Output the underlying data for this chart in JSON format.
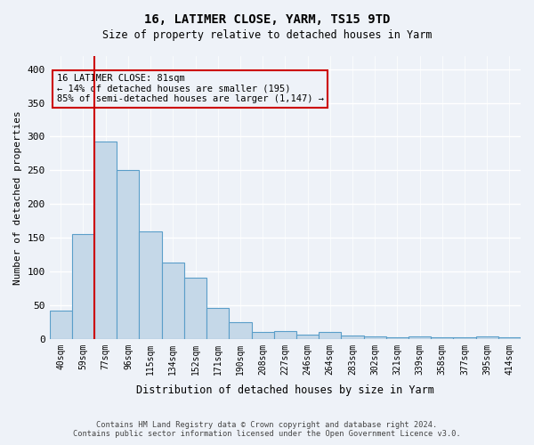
{
  "title1": "16, LATIMER CLOSE, YARM, TS15 9TD",
  "title2": "Size of property relative to detached houses in Yarm",
  "xlabel": "Distribution of detached houses by size in Yarm",
  "ylabel": "Number of detached properties",
  "categories": [
    "40sqm",
    "59sqm",
    "77sqm",
    "96sqm",
    "115sqm",
    "134sqm",
    "152sqm",
    "171sqm",
    "190sqm",
    "208sqm",
    "227sqm",
    "246sqm",
    "264sqm",
    "283sqm",
    "302sqm",
    "321sqm",
    "339sqm",
    "358sqm",
    "377sqm",
    "395sqm",
    "414sqm"
  ],
  "values": [
    42,
    155,
    293,
    251,
    160,
    113,
    91,
    46,
    25,
    10,
    11,
    6,
    10,
    5,
    4,
    2,
    4,
    3,
    2,
    4,
    3
  ],
  "bar_color": "#c5d8e8",
  "bar_edge_color": "#5a9ec9",
  "vline_x": 1.5,
  "vline_color": "#cc0000",
  "annotation_text": "16 LATIMER CLOSE: 81sqm\n← 14% of detached houses are smaller (195)\n85% of semi-detached houses are larger (1,147) →",
  "annotation_box_edgecolor": "#cc0000",
  "footer1": "Contains HM Land Registry data © Crown copyright and database right 2024.",
  "footer2": "Contains public sector information licensed under the Open Government Licence v3.0.",
  "ylim": [
    0,
    420
  ],
  "yticks": [
    0,
    50,
    100,
    150,
    200,
    250,
    300,
    350,
    400
  ],
  "background_color": "#eef2f8",
  "grid_color": "#ffffff"
}
